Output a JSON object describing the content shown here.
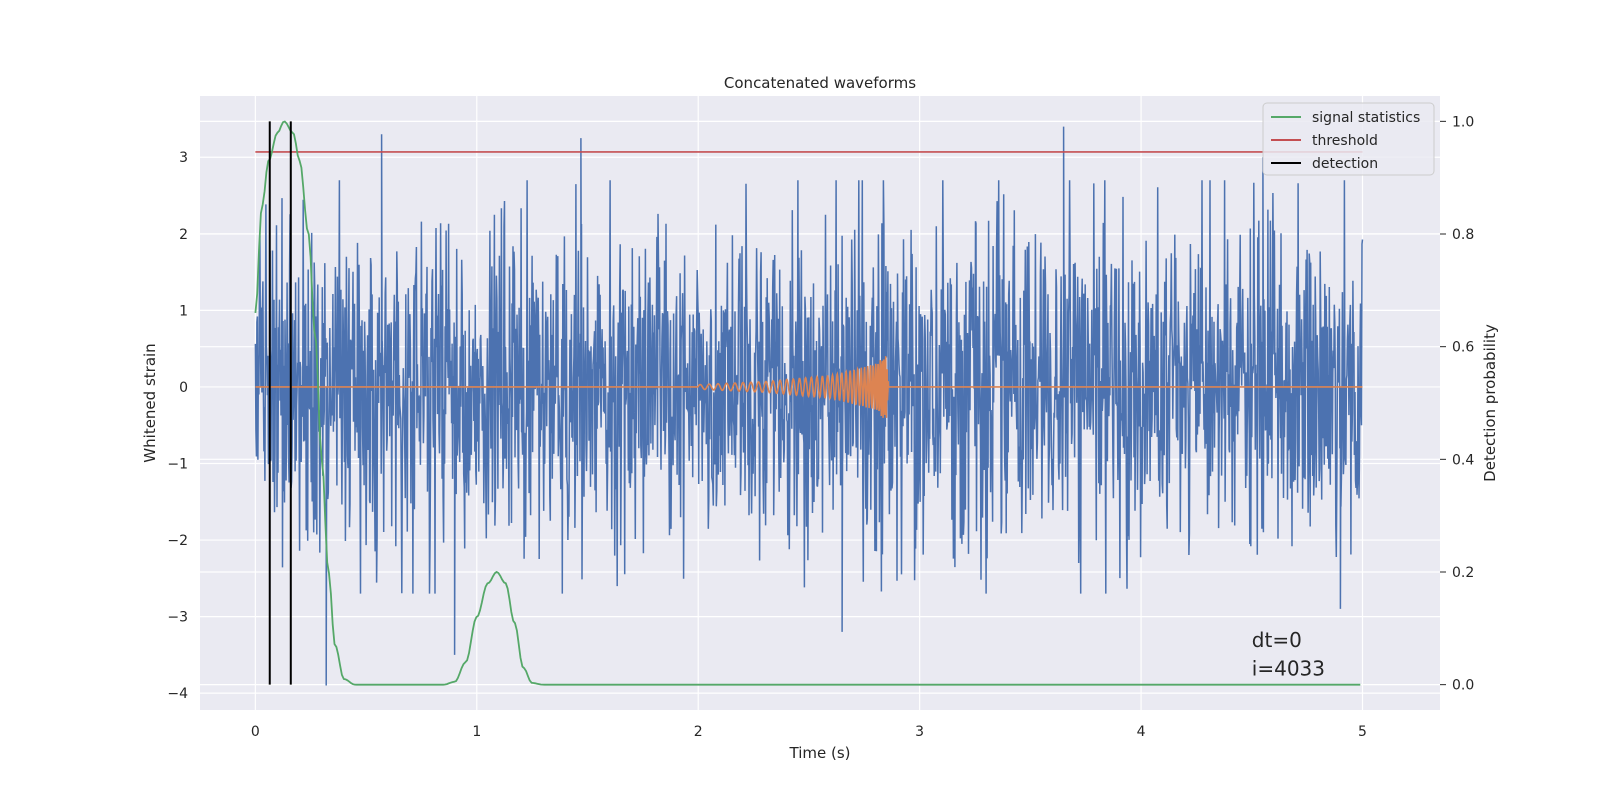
{
  "chart_data": {
    "type": "line",
    "title": "Concatenated waveforms",
    "xlabel": "Time (s)",
    "ylabel": "Whitened strain",
    "ylabel_right": "Detection probability",
    "xlim": [
      -0.25,
      5.35
    ],
    "ylim_left": [
      -4.22,
      3.8
    ],
    "ylim_right": [
      -0.045,
      1.045
    ],
    "x_ticks": [
      0,
      1,
      2,
      3,
      4,
      5
    ],
    "y_ticks_left": [
      -4,
      -3,
      -2,
      -1,
      0,
      1,
      2,
      3
    ],
    "y_ticks_right": [
      0.0,
      0.2,
      0.4,
      0.6,
      0.8,
      1.0
    ],
    "grid": true,
    "legend_position": "top-right",
    "legend": [
      {
        "label": "signal statistics",
        "color": "#55a868"
      },
      {
        "label": "threshold",
        "color": "#c44e52"
      },
      {
        "label": "detection",
        "color": "#000000"
      }
    ],
    "series": [
      {
        "name": "",
        "axis": "left",
        "color": "#4c72b0",
        "description_kind": "noise",
        "x_range": [
          0,
          5
        ],
        "amplitude_typical": 1.1,
        "extremes": [
          {
            "x": 0.57,
            "y": 3.3
          },
          {
            "x": 1.47,
            "y": 3.25
          },
          {
            "x": 3.65,
            "y": 3.4
          },
          {
            "x": 0.32,
            "y": -3.9
          },
          {
            "x": 0.9,
            "y": -3.5
          },
          {
            "x": 2.65,
            "y": -3.2
          },
          {
            "x": 4.55,
            "y": 3.0
          },
          {
            "x": 4.9,
            "y": -2.9
          }
        ]
      },
      {
        "name": "",
        "axis": "left",
        "color": "#dd8452",
        "description_kind": "chirp",
        "x": [
          0,
          2.0,
          2.3,
          2.6,
          2.8,
          2.85,
          2.86,
          5.0
        ],
        "envelope": [
          0,
          0.03,
          0.07,
          0.15,
          0.3,
          0.45,
          0,
          0
        ]
      },
      {
        "name": "signal statistics",
        "axis": "right",
        "color": "#55a868",
        "x": [
          0,
          0.03,
          0.06,
          0.1,
          0.13,
          0.17,
          0.2,
          0.24,
          0.27,
          0.3,
          0.33,
          0.36,
          0.4,
          0.45,
          0.5,
          0.85,
          0.9,
          0.95,
          1.0,
          1.05,
          1.09,
          1.13,
          1.17,
          1.21,
          1.25,
          1.3,
          1.5,
          3.0,
          4.5,
          4.99
        ],
        "values": [
          0.66,
          0.85,
          0.93,
          0.98,
          1.0,
          0.98,
          0.93,
          0.8,
          0.62,
          0.4,
          0.2,
          0.07,
          0.01,
          0.0,
          0.0,
          0.0,
          0.005,
          0.04,
          0.12,
          0.18,
          0.2,
          0.18,
          0.11,
          0.03,
          0.003,
          0.0,
          0.0,
          0.0,
          0.0,
          0.0
        ]
      },
      {
        "name": "threshold",
        "axis": "left",
        "color": "#c44e52",
        "x": [
          0,
          5
        ],
        "values": [
          3.07,
          3.07
        ]
      }
    ],
    "detections": {
      "color": "#000000",
      "x": [
        0.065,
        0.16
      ],
      "y_range_right": [
        0.0,
        1.0
      ]
    },
    "annotations": [
      {
        "text": "dt=0",
        "x": 4.5,
        "y": -3.4
      },
      {
        "text": "i=4033",
        "x": 4.5,
        "y": -3.77
      }
    ]
  }
}
